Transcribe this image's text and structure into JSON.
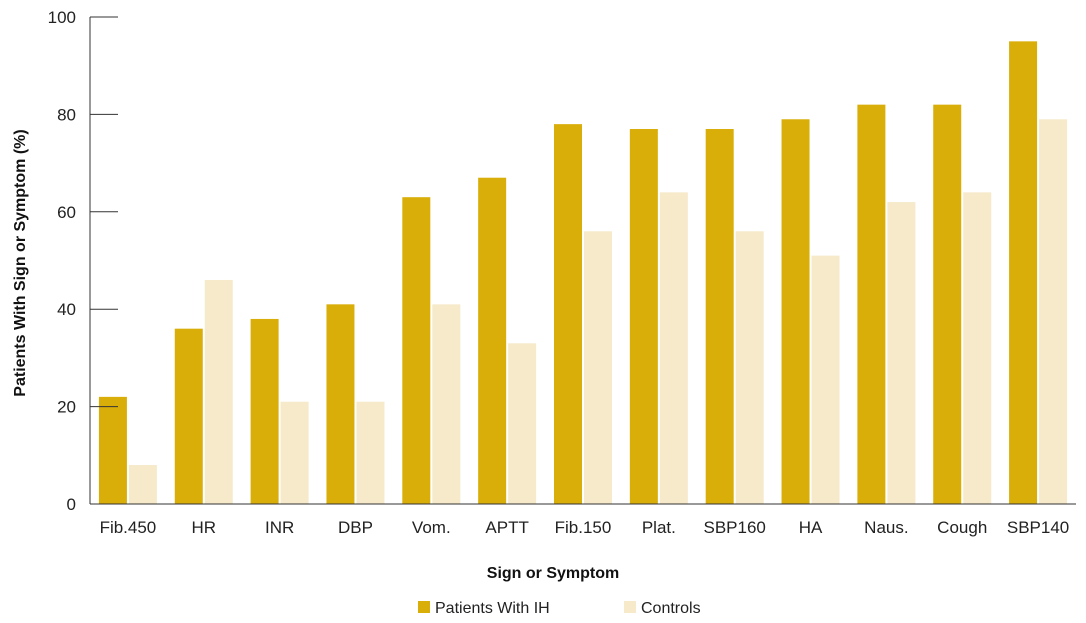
{
  "chart_data": {
    "type": "bar",
    "title": "",
    "xlabel": "Sign or Symptom",
    "ylabel": "Patients With Sign or Symptom (%)",
    "ylim": [
      0,
      100
    ],
    "yticks": [
      0,
      20,
      40,
      60,
      80,
      100
    ],
    "grid": false,
    "legend_position": "bottom-center",
    "categories": [
      "Fib.450",
      "HR",
      "INR",
      "DBP",
      "Vom.",
      "APTT",
      "Fib.150",
      "Plat.",
      "SBP160",
      "HA",
      "Naus.",
      "Cough",
      "SBP140"
    ],
    "series": [
      {
        "name": "Patients With IH",
        "color": "#d9ae09",
        "values": [
          22,
          36,
          38,
          41,
          63,
          67,
          78,
          77,
          77,
          79,
          82,
          82,
          95
        ]
      },
      {
        "name": "Controls",
        "color": "#f6eaca",
        "values": [
          8,
          46,
          21,
          21,
          41,
          33,
          56,
          64,
          56,
          51,
          62,
          64,
          79
        ]
      }
    ]
  }
}
